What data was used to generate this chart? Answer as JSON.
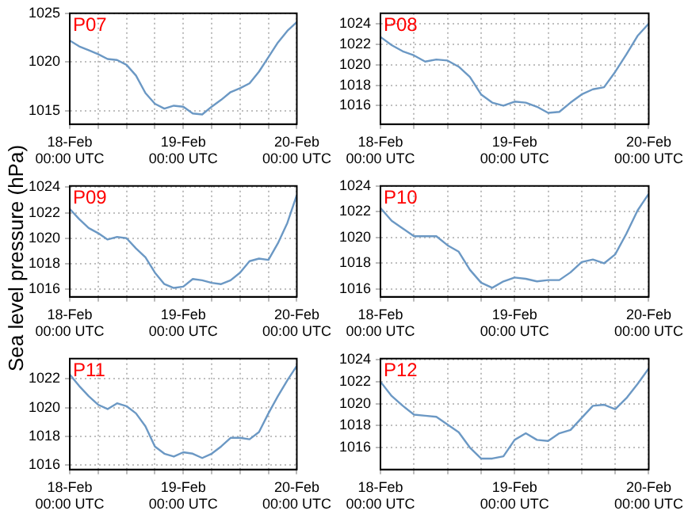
{
  "chart_data": [
    {
      "type": "line",
      "title": "P07",
      "color": "#6b98c4",
      "x": [
        "--02-18T00:00",
        "--02-18T02:00",
        "--02-18T04:00",
        "--02-18T06:00",
        "--02-18T08:00",
        "--02-18T10:00",
        "--02-18T12:00",
        "--02-18T14:00",
        "--02-18T16:00",
        "--02-18T18:00",
        "--02-18T20:00",
        "--02-18T22:00",
        "--02-19T00:00",
        "--02-19T02:00",
        "--02-19T04:00",
        "--02-19T06:00",
        "--02-19T08:00",
        "--02-19T10:00",
        "--02-19T12:00",
        "--02-19T14:00",
        "--02-19T16:00",
        "--02-19T18:00",
        "--02-19T20:00",
        "--02-19T22:00",
        "--02-20T00:00"
      ],
      "values": [
        1022.2,
        1021.6,
        1021.2,
        1020.8,
        1020.3,
        1020.2,
        1019.7,
        1018.6,
        1016.8,
        1015.7,
        1015.2,
        1015.5,
        1015.4,
        1014.7,
        1014.6,
        1015.4,
        1016.1,
        1016.9,
        1017.3,
        1017.8,
        1019.0,
        1020.5,
        1022.0,
        1023.2,
        1024.1
      ],
      "xlim": [
        "--02-18T00:00",
        "--02-20T00:00"
      ],
      "xticks": [
        {
          "value": "--02-18T00:00",
          "label": "18-Feb\n00:00 UTC"
        },
        {
          "value": "--02-18T06:00",
          "label": null
        },
        {
          "value": "--02-18T12:00",
          "label": null
        },
        {
          "value": "--02-18T18:00",
          "label": null
        },
        {
          "value": "--02-19T00:00",
          "label": "19-Feb\n00:00 UTC"
        },
        {
          "value": "--02-19T06:00",
          "label": null
        },
        {
          "value": "--02-19T12:00",
          "label": null
        },
        {
          "value": "--02-19T18:00",
          "label": null
        },
        {
          "value": "--02-20T00:00",
          "label": "20-Feb\n00:00 UTC"
        }
      ],
      "ylim": [
        1013.6,
        1025
      ],
      "yticks": [
        1015,
        1020,
        1025
      ],
      "grid": true
    },
    {
      "type": "line",
      "title": "P08",
      "color": "#6b98c4",
      "x": [
        "--02-18T00:00",
        "--02-18T02:00",
        "--02-18T04:00",
        "--02-18T06:00",
        "--02-18T08:00",
        "--02-18T10:00",
        "--02-18T12:00",
        "--02-18T14:00",
        "--02-18T16:00",
        "--02-18T18:00",
        "--02-18T20:00",
        "--02-18T22:00",
        "--02-19T00:00",
        "--02-19T02:00",
        "--02-19T04:00",
        "--02-19T06:00",
        "--02-19T08:00",
        "--02-19T10:00",
        "--02-19T12:00",
        "--02-19T14:00",
        "--02-19T16:00",
        "--02-19T18:00",
        "--02-19T20:00",
        "--02-19T22:00",
        "--02-20T00:00"
      ],
      "values": [
        1022.7,
        1021.9,
        1021.3,
        1020.9,
        1020.3,
        1020.5,
        1020.4,
        1019.8,
        1018.8,
        1017.1,
        1016.3,
        1016.0,
        1016.4,
        1016.3,
        1015.9,
        1015.3,
        1015.4,
        1016.3,
        1017.1,
        1017.6,
        1017.8,
        1019.3,
        1021.0,
        1022.8,
        1024.0
      ],
      "xlim": [
        "--02-18T00:00",
        "--02-20T00:00"
      ],
      "xticks": [
        {
          "value": "--02-18T00:00",
          "label": "18-Feb\n00:00 UTC"
        },
        {
          "value": "--02-18T06:00",
          "label": null
        },
        {
          "value": "--02-18T12:00",
          "label": null
        },
        {
          "value": "--02-18T18:00",
          "label": null
        },
        {
          "value": "--02-19T00:00",
          "label": "19-Feb\n00:00 UTC"
        },
        {
          "value": "--02-19T06:00",
          "label": null
        },
        {
          "value": "--02-19T12:00",
          "label": null
        },
        {
          "value": "--02-19T18:00",
          "label": null
        },
        {
          "value": "--02-20T00:00",
          "label": "20-Feb\n00:00 UTC"
        }
      ],
      "ylim": [
        1014.2,
        1025
      ],
      "yticks": [
        1016,
        1018,
        1020,
        1022,
        1024
      ],
      "grid": true
    },
    {
      "type": "line",
      "title": "P09",
      "ylabel": "Sea level pressure (hPa)",
      "color": "#6b98c4",
      "x": [
        "--02-18T00:00",
        "--02-18T02:00",
        "--02-18T04:00",
        "--02-18T06:00",
        "--02-18T08:00",
        "--02-18T10:00",
        "--02-18T12:00",
        "--02-18T14:00",
        "--02-18T16:00",
        "--02-18T18:00",
        "--02-18T20:00",
        "--02-18T22:00",
        "--02-19T00:00",
        "--02-19T02:00",
        "--02-19T04:00",
        "--02-19T06:00",
        "--02-19T08:00",
        "--02-19T10:00",
        "--02-19T12:00",
        "--02-19T14:00",
        "--02-19T16:00",
        "--02-19T18:00",
        "--02-19T20:00",
        "--02-19T22:00",
        "--02-20T00:00"
      ],
      "values": [
        1022.3,
        1021.5,
        1020.8,
        1020.4,
        1019.9,
        1020.1,
        1020.0,
        1019.2,
        1018.5,
        1017.3,
        1016.4,
        1016.1,
        1016.2,
        1016.8,
        1016.7,
        1016.5,
        1016.4,
        1016.7,
        1017.3,
        1018.2,
        1018.4,
        1018.3,
        1019.6,
        1021.2,
        1023.4
      ],
      "xlim": [
        "--02-18T00:00",
        "--02-20T00:00"
      ],
      "xticks": [
        {
          "value": "--02-18T00:00",
          "label": "18-Feb\n00:00 UTC"
        },
        {
          "value": "--02-18T06:00",
          "label": null
        },
        {
          "value": "--02-18T12:00",
          "label": null
        },
        {
          "value": "--02-18T18:00",
          "label": null
        },
        {
          "value": "--02-19T00:00",
          "label": "19-Feb\n00:00 UTC"
        },
        {
          "value": "--02-19T06:00",
          "label": null
        },
        {
          "value": "--02-19T12:00",
          "label": null
        },
        {
          "value": "--02-19T18:00",
          "label": null
        },
        {
          "value": "--02-20T00:00",
          "label": "20-Feb\n00:00 UTC"
        }
      ],
      "ylim": [
        1015.4,
        1024.1
      ],
      "yticks": [
        1016,
        1018,
        1020,
        1022,
        1024
      ],
      "grid": true
    },
    {
      "type": "line",
      "title": "P10",
      "color": "#6b98c4",
      "x": [
        "--02-18T00:00",
        "--02-18T02:00",
        "--02-18T04:00",
        "--02-18T06:00",
        "--02-18T08:00",
        "--02-18T10:00",
        "--02-18T12:00",
        "--02-18T14:00",
        "--02-18T16:00",
        "--02-18T18:00",
        "--02-18T20:00",
        "--02-18T22:00",
        "--02-19T00:00",
        "--02-19T02:00",
        "--02-19T04:00",
        "--02-19T06:00",
        "--02-19T08:00",
        "--02-19T10:00",
        "--02-19T12:00",
        "--02-19T14:00",
        "--02-19T16:00",
        "--02-19T18:00",
        "--02-19T20:00",
        "--02-19T22:00",
        "--02-20T00:00"
      ],
      "values": [
        1022.3,
        1021.3,
        1020.7,
        1020.1,
        1020.1,
        1020.1,
        1019.4,
        1018.9,
        1017.5,
        1016.5,
        1016.1,
        1016.6,
        1016.9,
        1016.8,
        1016.6,
        1016.7,
        1016.7,
        1017.3,
        1018.1,
        1018.3,
        1018.0,
        1018.7,
        1020.3,
        1022.1,
        1023.4
      ],
      "xlim": [
        "--02-18T00:00",
        "--02-20T00:00"
      ],
      "xticks": [
        {
          "value": "--02-18T00:00",
          "label": "18-Feb\n00:00 UTC"
        },
        {
          "value": "--02-18T06:00",
          "label": null
        },
        {
          "value": "--02-18T12:00",
          "label": null
        },
        {
          "value": "--02-18T18:00",
          "label": null
        },
        {
          "value": "--02-19T00:00",
          "label": "19-Feb\n00:00 UTC"
        },
        {
          "value": "--02-19T06:00",
          "label": null
        },
        {
          "value": "--02-19T12:00",
          "label": null
        },
        {
          "value": "--02-19T18:00",
          "label": null
        },
        {
          "value": "--02-20T00:00",
          "label": "20-Feb\n00:00 UTC"
        }
      ],
      "ylim": [
        1015.4,
        1024
      ],
      "yticks": [
        1016,
        1018,
        1020,
        1022,
        1024
      ],
      "grid": true
    },
    {
      "type": "line",
      "title": "P11",
      "color": "#6b98c4",
      "x": [
        "--02-18T00:00",
        "--02-18T02:00",
        "--02-18T04:00",
        "--02-18T06:00",
        "--02-18T08:00",
        "--02-18T10:00",
        "--02-18T12:00",
        "--02-18T14:00",
        "--02-18T16:00",
        "--02-18T18:00",
        "--02-18T20:00",
        "--02-18T22:00",
        "--02-19T00:00",
        "--02-19T02:00",
        "--02-19T04:00",
        "--02-19T06:00",
        "--02-19T08:00",
        "--02-19T10:00",
        "--02-19T12:00",
        "--02-19T14:00",
        "--02-19T16:00",
        "--02-19T18:00",
        "--02-19T20:00",
        "--02-19T22:00",
        "--02-20T00:00"
      ],
      "values": [
        1022.3,
        1021.5,
        1020.8,
        1020.2,
        1019.9,
        1020.3,
        1020.1,
        1019.6,
        1018.7,
        1017.3,
        1016.8,
        1016.6,
        1016.9,
        1016.8,
        1016.5,
        1016.8,
        1017.3,
        1017.9,
        1017.9,
        1017.8,
        1018.3,
        1019.6,
        1020.8,
        1021.9,
        1022.9
      ],
      "xlim": [
        "--02-18T00:00",
        "--02-20T00:00"
      ],
      "xticks": [
        {
          "value": "--02-18T00:00",
          "label": "18-Feb\n00:00 UTC"
        },
        {
          "value": "--02-18T06:00",
          "label": null
        },
        {
          "value": "--02-18T12:00",
          "label": null
        },
        {
          "value": "--02-18T18:00",
          "label": null
        },
        {
          "value": "--02-19T00:00",
          "label": "19-Feb\n00:00 UTC"
        },
        {
          "value": "--02-19T06:00",
          "label": null
        },
        {
          "value": "--02-19T12:00",
          "label": null
        },
        {
          "value": "--02-19T18:00",
          "label": null
        },
        {
          "value": "--02-20T00:00",
          "label": "20-Feb\n00:00 UTC"
        }
      ],
      "ylim": [
        1015.7,
        1023.4
      ],
      "yticks": [
        1016,
        1018,
        1020,
        1022
      ],
      "grid": true
    },
    {
      "type": "line",
      "title": "P12",
      "color": "#6b98c4",
      "x": [
        "--02-18T00:00",
        "--02-18T02:00",
        "--02-18T04:00",
        "--02-18T06:00",
        "--02-18T08:00",
        "--02-18T10:00",
        "--02-18T12:00",
        "--02-18T14:00",
        "--02-18T16:00",
        "--02-18T18:00",
        "--02-18T20:00",
        "--02-18T22:00",
        "--02-19T00:00",
        "--02-19T02:00",
        "--02-19T04:00",
        "--02-19T06:00",
        "--02-19T08:00",
        "--02-19T10:00",
        "--02-19T12:00",
        "--02-19T14:00",
        "--02-19T16:00",
        "--02-19T18:00",
        "--02-19T20:00",
        "--02-19T22:00",
        "--02-20T00:00"
      ],
      "values": [
        1022.0,
        1020.7,
        1019.8,
        1019.0,
        1018.9,
        1018.8,
        1018.1,
        1017.4,
        1016.0,
        1015.0,
        1015.0,
        1015.2,
        1016.7,
        1017.3,
        1016.7,
        1016.6,
        1017.3,
        1017.6,
        1018.7,
        1019.8,
        1019.9,
        1019.5,
        1020.5,
        1021.8,
        1023.2
      ],
      "xlim": [
        "--02-18T00:00",
        "--02-20T00:00"
      ],
      "xticks": [
        {
          "value": "--02-18T00:00",
          "label": "18-Feb\n00:00 UTC"
        },
        {
          "value": "--02-18T06:00",
          "label": null
        },
        {
          "value": "--02-18T12:00",
          "label": null
        },
        {
          "value": "--02-18T18:00",
          "label": null
        },
        {
          "value": "--02-19T00:00",
          "label": "19-Feb\n00:00 UTC"
        },
        {
          "value": "--02-19T06:00",
          "label": null
        },
        {
          "value": "--02-19T12:00",
          "label": null
        },
        {
          "value": "--02-19T18:00",
          "label": null
        },
        {
          "value": "--02-20T00:00",
          "label": "20-Feb\n00:00 UTC"
        }
      ],
      "ylim": [
        1014.0,
        1024.1
      ],
      "yticks": [
        1016,
        1018,
        1020,
        1022,
        1024
      ],
      "grid": true
    }
  ]
}
